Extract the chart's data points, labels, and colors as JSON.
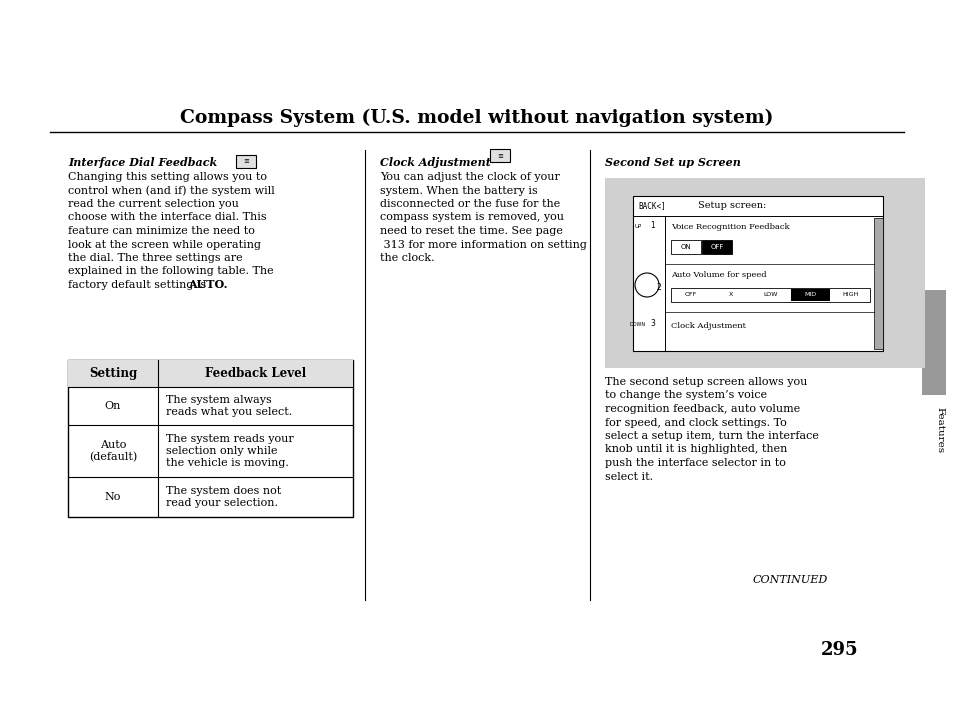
{
  "title": "Compass System (U.S. model without navigation system)",
  "title_fontsize": 13.5,
  "bg_color": "#ffffff",
  "page_number": "295",
  "continued_text": "CONTINUED",
  "features_label": "Features",
  "sidebar_color": "#999999",
  "idf_heading": "Interface Dial Feedback",
  "idf_body_lines": [
    "Changing this setting allows you to",
    "control when (and if) the system will",
    "read the current selection you",
    "choose with the interface dial. This",
    "feature can minimize the need to",
    "look at the screen while operating",
    "the dial. The three settings are",
    "explained in the following table. The",
    "factory default setting is "
  ],
  "idf_bold_end": "AUTO.",
  "ca_heading": "Clock Adjustment",
  "ca_body_lines": [
    "You can adjust the clock of your",
    "system. When the battery is",
    "disconnected or the fuse for the",
    "compass system is removed, you",
    "need to reset the time. See page",
    " 313 for more information on setting",
    "the clock."
  ],
  "ss_heading": "Second Set up Screen",
  "ss_desc_lines": [
    "The second setup screen allows you",
    "to change the system’s voice",
    "recognition feedback, auto volume",
    "for speed, and clock settings. To",
    "select a setup item, turn the interface",
    "knob until it is highlighted, then",
    "push the interface selector in to",
    "select it."
  ],
  "table_setting_col": "Setting",
  "table_feedback_col": "Feedback Level",
  "table_rows": [
    {
      "setting": "On",
      "feedback": "The system always\nreads what you select."
    },
    {
      "setting": "Auto\n(default)",
      "feedback": "The system reads your\nselection only while\nthe vehicle is moving."
    },
    {
      "setting": "No",
      "feedback": "The system does not\nread your selection."
    }
  ],
  "screen_title": "Setup screen:",
  "screen_back": "BACK<]",
  "screen_item1_label": "Voice Recognition Feedback",
  "screen_item2_label": "Auto Volume for speed",
  "screen_item2_options": [
    "OFF",
    "X",
    "LOW",
    "MID",
    "HIGH"
  ],
  "screen_item2_selected": "MID",
  "screen_item3_label": "Clock Adjustment"
}
